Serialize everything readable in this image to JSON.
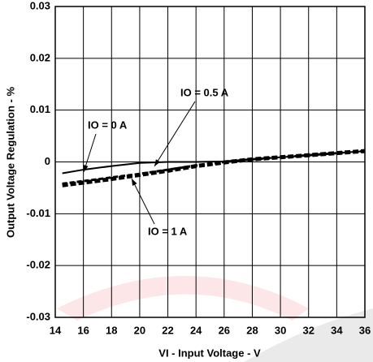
{
  "chart_data": {
    "type": "line",
    "x_label": "VI - Input Voltage - V",
    "y_label": "Output Voltage Regulation - %",
    "x": [
      14.5,
      16,
      18,
      20,
      22,
      24,
      26,
      28,
      30,
      32,
      34,
      36
    ],
    "series": [
      {
        "name": "IO = 0 A",
        "color": "#000000",
        "style": "solid",
        "values": [
          -0.0022,
          -0.0015,
          -0.0008,
          -0.0002,
          0,
          0,
          0.0001,
          0.0005,
          0.0009,
          0.0013,
          0.0017,
          0.0021
        ]
      },
      {
        "name": "IO = 0.5 A",
        "color": "#000000",
        "style": "dashed",
        "values": [
          -0.0042,
          -0.0037,
          -0.003,
          -0.0023,
          -0.0015,
          -0.0007,
          0,
          0.0005,
          0.0009,
          0.0013,
          0.0017,
          0.0021
        ]
      },
      {
        "name": "IO = 1 A",
        "color": "#000000",
        "style": "thick-dashed",
        "values": [
          -0.0045,
          -0.004,
          -0.0033,
          -0.0025,
          -0.0017,
          -0.0008,
          -0.0001,
          0.0005,
          0.0009,
          0.0013,
          0.0017,
          0.0021
        ]
      }
    ],
    "xlim": [
      14,
      36
    ],
    "xticks": [
      14,
      16,
      18,
      20,
      22,
      24,
      26,
      28,
      30,
      32,
      34,
      36
    ],
    "ylim": [
      -0.03,
      0.03
    ],
    "yticks": [
      -0.03,
      -0.02,
      -0.01,
      0,
      0.01,
      0.02,
      0.03
    ],
    "grid": true
  }
}
